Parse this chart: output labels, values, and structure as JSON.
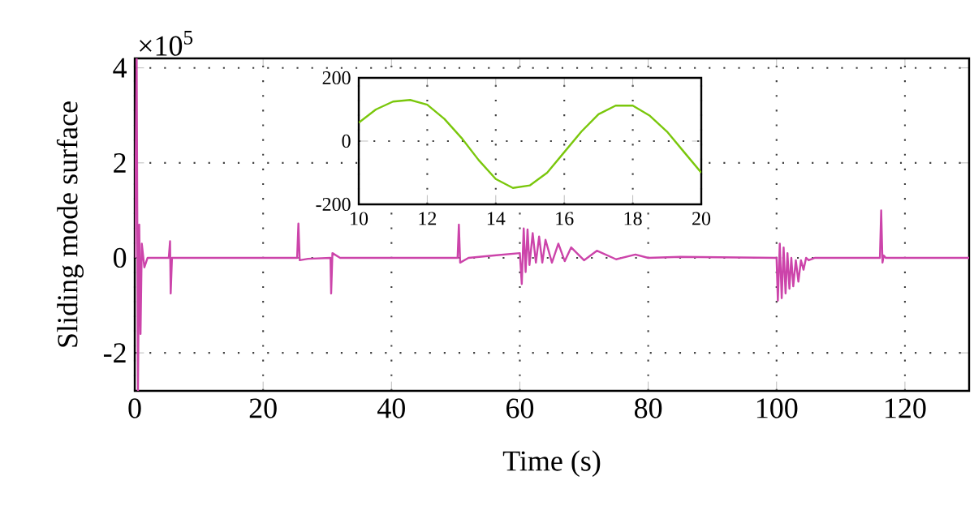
{
  "chart_data": [
    {
      "type": "line",
      "xlabel": "Time (s)",
      "ylabel": "Sliding mode surface",
      "annotations": [
        "×10$^{5}$"
      ],
      "color": "#cc44aa",
      "x": [
        0,
        0.3,
        0.5,
        0.7,
        0.9,
        1.1,
        1.5,
        2,
        5.3,
        5.5,
        5.6,
        5.8,
        25.3,
        25.5,
        25.7,
        27,
        30.5,
        30.6,
        30.8,
        32,
        50.3,
        50.5,
        50.7,
        52,
        56,
        60,
        60.3,
        60.6,
        60.9,
        61.2,
        61.5,
        62,
        62.5,
        63,
        63.5,
        64,
        65,
        66,
        67,
        68,
        70,
        72,
        75,
        78,
        80,
        85,
        100,
        100.2,
        100.5,
        100.8,
        101.1,
        101.4,
        101.7,
        102,
        102.3,
        102.6,
        103,
        103.4,
        103.8,
        104.2,
        104.6,
        105,
        106,
        107,
        116.1,
        116.3,
        116.5,
        116.7,
        117,
        130
      ],
      "values": [
        0,
        4.2,
        -2.8,
        0.7,
        -1.6,
        0.3,
        -0.2,
        0,
        0,
        0.35,
        -0.75,
        0,
        0,
        0.72,
        -0.05,
        -0.02,
        0,
        -0.75,
        0.1,
        0,
        0,
        0.7,
        -0.1,
        0,
        0.05,
        0.1,
        -0.55,
        0.62,
        -0.3,
        0.6,
        -0.15,
        0.52,
        -0.1,
        0.45,
        -0.1,
        0.38,
        -0.1,
        0.3,
        -0.07,
        0.22,
        -0.05,
        0.15,
        -0.03,
        0.07,
        0,
        0.02,
        0,
        -0.9,
        0.3,
        -0.85,
        0.22,
        -0.75,
        0.1,
        -0.65,
        0,
        -0.6,
        -0.05,
        -0.5,
        -0.05,
        -0.25,
        0,
        -0.05,
        0,
        0,
        0,
        1.0,
        -0.1,
        0.05,
        0,
        0
      ],
      "xlim": [
        0,
        130
      ],
      "ylim": [
        -2.8,
        4.2
      ],
      "xticks": [
        0,
        20,
        40,
        60,
        80,
        100,
        120
      ],
      "yticks": [
        -2,
        0,
        2,
        4
      ],
      "grid": true
    },
    {
      "type": "line",
      "color": "#7ac70c",
      "x": [
        10,
        10.5,
        11,
        11.5,
        12,
        12.5,
        13,
        13.5,
        14,
        14.5,
        15,
        15.5,
        16,
        16.5,
        17,
        17.5,
        18,
        18.5,
        19,
        19.5,
        20
      ],
      "values": [
        58,
        100,
        125,
        130,
        115,
        70,
        10,
        -60,
        -120,
        -148,
        -140,
        -100,
        -35,
        30,
        85,
        112,
        112,
        80,
        30,
        -35,
        -100
      ],
      "xlim": [
        10,
        20
      ],
      "ylim": [
        -200,
        200
      ],
      "xticks": [
        10,
        12,
        14,
        16,
        18,
        20
      ],
      "yticks": [
        -200,
        0,
        200
      ],
      "grid": true
    }
  ]
}
